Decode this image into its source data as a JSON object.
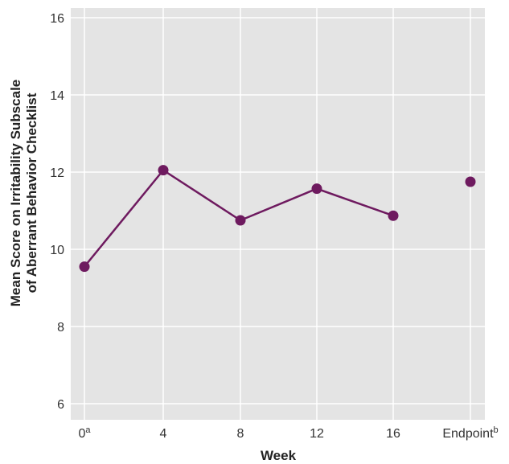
{
  "chart_data": {
    "type": "line",
    "title": "",
    "xlabel": "Week",
    "ylabel_lines": [
      "Mean Score on Irritability Subscale",
      "of Aberrant Behavior Checklist"
    ],
    "x_categories": [
      {
        "label": "0",
        "sup": "a"
      },
      {
        "label": "4",
        "sup": ""
      },
      {
        "label": "8",
        "sup": ""
      },
      {
        "label": "12",
        "sup": ""
      },
      {
        "label": "16",
        "sup": ""
      },
      {
        "label": "Endpoint",
        "sup": "b"
      }
    ],
    "y_ticks": [
      "6",
      "8",
      "10",
      "12",
      "14",
      "16"
    ],
    "ylim": [
      6,
      16
    ],
    "grid": true,
    "series": [
      {
        "values": [
          9.55,
          12.05,
          10.75,
          11.57,
          10.87,
          11.75
        ],
        "connected_through_index": 4
      }
    ],
    "colors": {
      "series": "#6e1a5f",
      "plot_background": "#e4e4e4",
      "grid": "#ffffff"
    }
  }
}
